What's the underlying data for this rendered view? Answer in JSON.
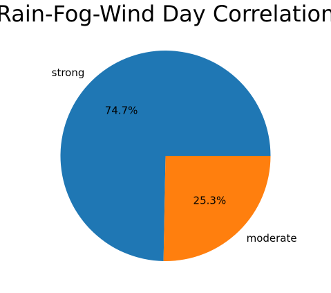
{
  "chart_data": {
    "type": "pie",
    "title": "Rain-Fog-Wind Day Correlation",
    "categories": [
      "strong",
      "moderate"
    ],
    "values": [
      74.7,
      25.3
    ],
    "value_labels": [
      "74.7%",
      "25.3%"
    ],
    "colors": [
      "#1f77b4",
      "#ff7f0e"
    ],
    "start_angle_deg": 0,
    "direction": "counterclockwise",
    "legend": "none"
  }
}
